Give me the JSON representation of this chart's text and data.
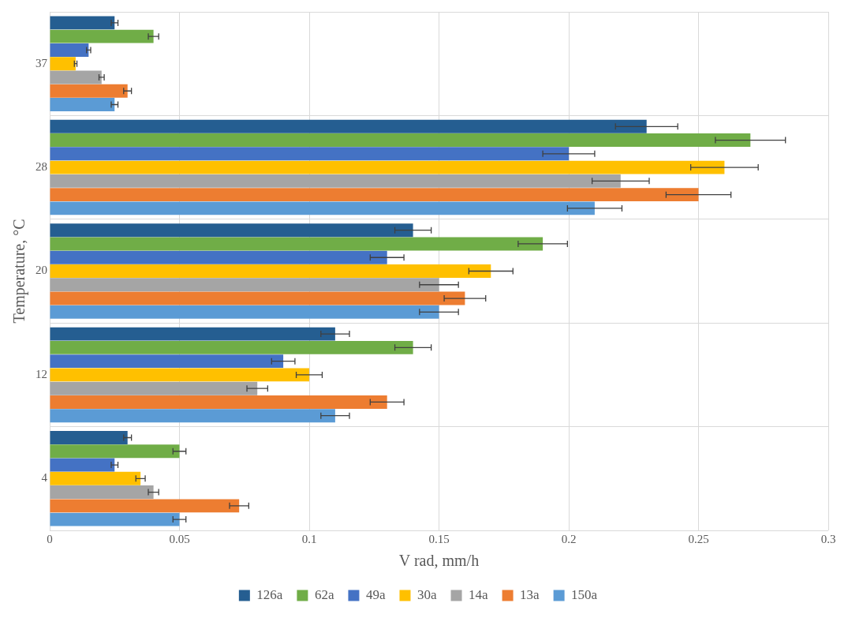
{
  "chart_data": {
    "type": "bar",
    "orientation": "horizontal",
    "xlabel": "V rad, mm/h",
    "ylabel": "Temperature, °C",
    "categories": [
      "37",
      "28",
      "20",
      "12",
      "4"
    ],
    "series": [
      {
        "name": "126a",
        "color": "#255e91",
        "values": [
          0.025,
          0.23,
          0.14,
          0.11,
          0.03
        ],
        "errors": [
          0.0013,
          0.012,
          0.007,
          0.0055,
          0.0015
        ]
      },
      {
        "name": "62a",
        "color": "#70ad47",
        "values": [
          0.04,
          0.27,
          0.19,
          0.14,
          0.05
        ],
        "errors": [
          0.002,
          0.0135,
          0.0095,
          0.007,
          0.0025
        ]
      },
      {
        "name": "49a",
        "color": "#4472c4",
        "values": [
          0.015,
          0.2,
          0.13,
          0.09,
          0.025
        ],
        "errors": [
          0.0008,
          0.01,
          0.0065,
          0.0045,
          0.0013
        ]
      },
      {
        "name": "30a",
        "color": "#ffc000",
        "values": [
          0.01,
          0.26,
          0.17,
          0.1,
          0.035
        ],
        "errors": [
          0.0005,
          0.013,
          0.0085,
          0.005,
          0.0018
        ]
      },
      {
        "name": "14a",
        "color": "#a5a5a5",
        "values": [
          0.02,
          0.22,
          0.15,
          0.08,
          0.04
        ],
        "errors": [
          0.001,
          0.011,
          0.0075,
          0.004,
          0.002
        ]
      },
      {
        "name": "13a",
        "color": "#ed7d31",
        "values": [
          0.03,
          0.25,
          0.16,
          0.13,
          0.073
        ],
        "errors": [
          0.0015,
          0.0125,
          0.008,
          0.0065,
          0.0037
        ]
      },
      {
        "name": "150a",
        "color": "#5b9bd5",
        "values": [
          0.025,
          0.21,
          0.15,
          0.11,
          0.05
        ],
        "errors": [
          0.0013,
          0.0105,
          0.0075,
          0.0055,
          0.0025
        ]
      }
    ],
    "xlim": [
      0,
      0.3
    ],
    "xticks": [
      0,
      0.05,
      0.1,
      0.15,
      0.2,
      0.25,
      0.3
    ],
    "grid": true,
    "legend": "bottom"
  }
}
